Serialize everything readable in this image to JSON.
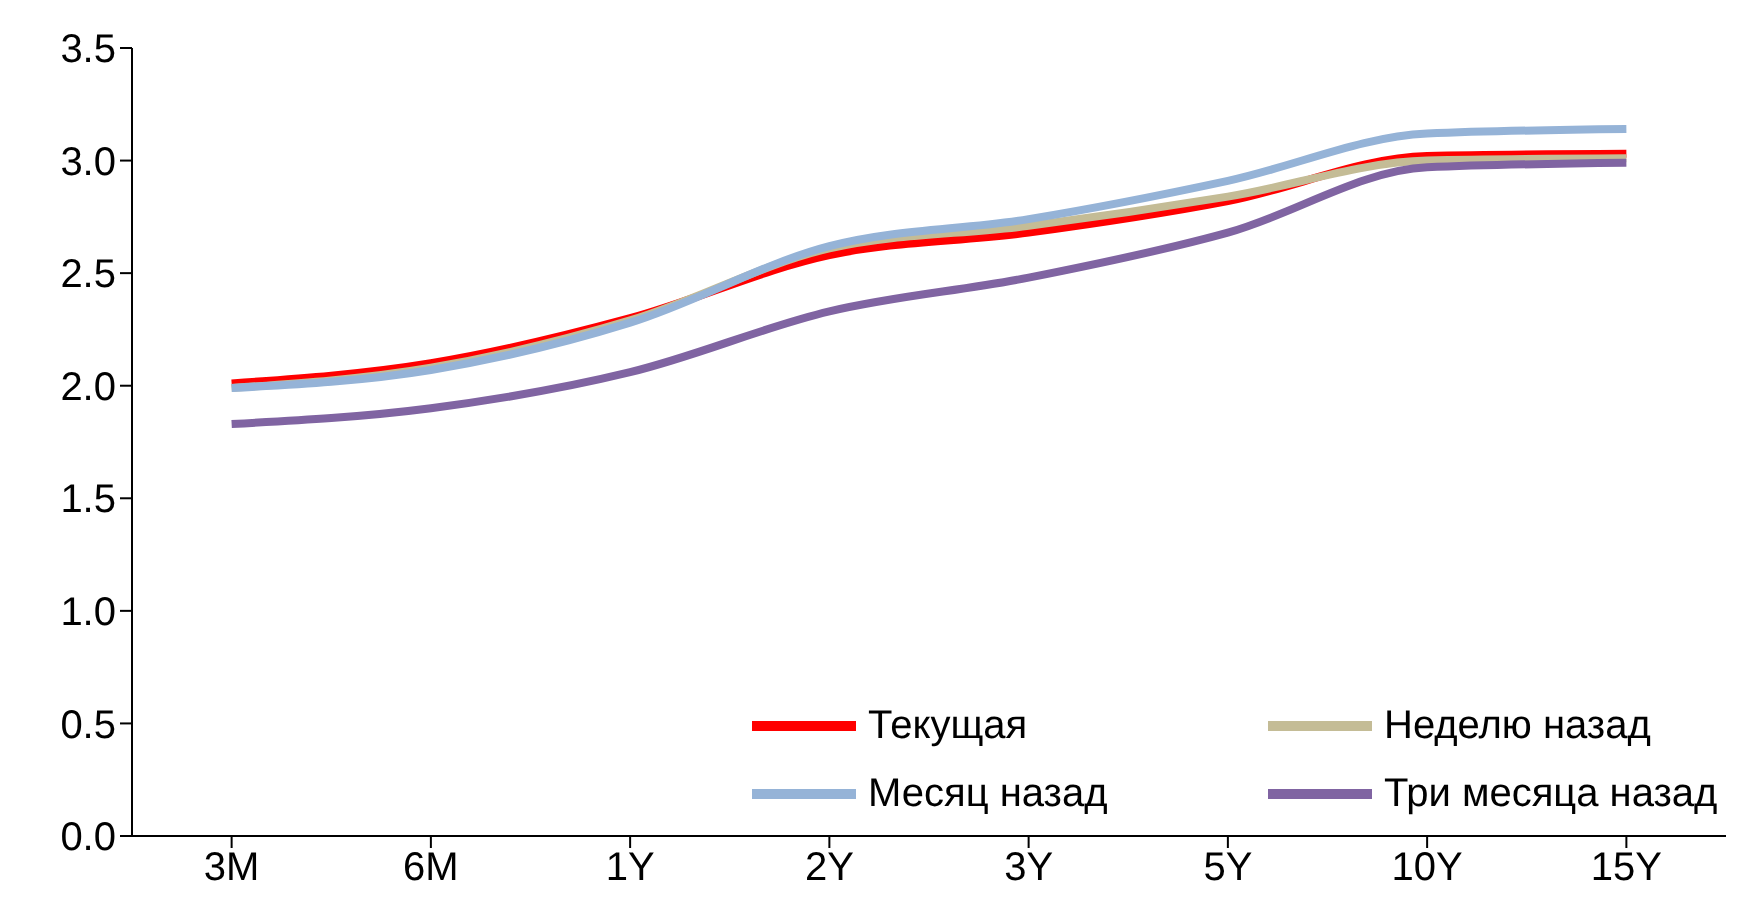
{
  "chart_data": {
    "type": "line",
    "categories": [
      "3M",
      "6M",
      "1Y",
      "2Y",
      "3Y",
      "5Y",
      "10Y",
      "15Y"
    ],
    "series": [
      {
        "name": "Текущая",
        "color": "#ff0000",
        "values": [
          2.01,
          2.1,
          2.3,
          2.58,
          2.68,
          2.82,
          3.02,
          3.03
        ]
      },
      {
        "name": "Неделю назад",
        "color": "#c4bc96",
        "values": [
          1.99,
          2.08,
          2.29,
          2.61,
          2.71,
          2.84,
          3.0,
          3.01
        ]
      },
      {
        "name": "Месяц назад",
        "color": "#95b3d7",
        "values": [
          1.99,
          2.07,
          2.28,
          2.62,
          2.74,
          2.91,
          3.12,
          3.14
        ]
      },
      {
        "name": "Три месяца назад",
        "color": "#8064a2",
        "values": [
          1.83,
          1.9,
          2.06,
          2.33,
          2.48,
          2.68,
          2.97,
          2.99
        ]
      }
    ],
    "ylim": [
      0,
      3.5
    ],
    "yticks": [
      {
        "value": 0,
        "label": "0.0"
      },
      {
        "value": 0.5,
        "label": "0.5"
      },
      {
        "value": 1,
        "label": "1.0"
      },
      {
        "value": 1.5,
        "label": "1.5"
      },
      {
        "value": 2,
        "label": "2.0"
      },
      {
        "value": 2.5,
        "label": "2.5"
      },
      {
        "value": 3,
        "label": "3.0"
      },
      {
        "value": 3.5,
        "label": "3.5"
      }
    ],
    "grid": false,
    "legend": "bottom right",
    "marker": "none",
    "line_style": "solid"
  }
}
